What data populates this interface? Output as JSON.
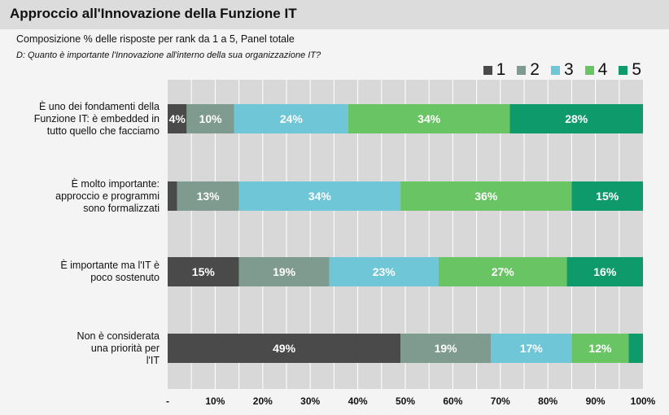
{
  "header": {
    "title": "Approccio all'Innovazione della Funzione IT",
    "subtitle": "Composizione % delle risposte per rank da 1 a 5, Panel totale",
    "question": "D: Quanto è importante l'Innovazione all'interno della sua organizzazione IT?"
  },
  "chart_data": {
    "type": "bar",
    "orientation": "horizontal",
    "stacked": true,
    "categories": [
      "È uno dei fondamenti della Funzione IT: è embedded in tutto quello che facciamo",
      "È molto importante: approccio e programmi sono formalizzati",
      "È importante ma l'IT è poco sostenuto",
      "Non è considerata una priorità per l'IT"
    ],
    "category_lines": [
      [
        "È uno dei fondamenti della",
        "Funzione IT: è embedded in",
        "tutto quello che facciamo"
      ],
      [
        "È molto importante:",
        "approccio e programmi",
        "sono formalizzati"
      ],
      [
        "È importante ma l'IT è",
        "poco sostenuto"
      ],
      [
        "Non è considerata",
        "una priorità per",
        "l'IT"
      ]
    ],
    "series": [
      {
        "name": "1",
        "color": "#4a4a4a",
        "values": [
          4,
          2,
          15,
          49
        ],
        "labels": [
          "4%",
          "",
          "15%",
          "49%"
        ]
      },
      {
        "name": "2",
        "color": "#7f9a8e",
        "values": [
          10,
          13,
          19,
          19
        ],
        "labels": [
          "10%",
          "13%",
          "19%",
          "19%"
        ]
      },
      {
        "name": "3",
        "color": "#6ec6d6",
        "values": [
          24,
          34,
          23,
          17
        ],
        "labels": [
          "24%",
          "34%",
          "23%",
          "17%"
        ]
      },
      {
        "name": "4",
        "color": "#69c464",
        "values": [
          34,
          36,
          27,
          12
        ],
        "labels": [
          "34%",
          "36%",
          "27%",
          "12%"
        ]
      },
      {
        "name": "5",
        "color": "#0f9a6c",
        "values": [
          28,
          15,
          16,
          3
        ],
        "labels": [
          "28%",
          "15%",
          "16%",
          ""
        ]
      }
    ],
    "xlim": [
      0,
      100
    ],
    "xticks": [
      "-",
      "10%",
      "20%",
      "30%",
      "40%",
      "50%",
      "60%",
      "70%",
      "80%",
      "90%",
      "100%"
    ],
    "grid": true,
    "legend_position": "top-right"
  },
  "colors": {
    "plot_background": "#d8d8d8",
    "grid": "#ffffff",
    "page_background": "#f4f4f4",
    "title_bar": "#dcdcdc"
  }
}
